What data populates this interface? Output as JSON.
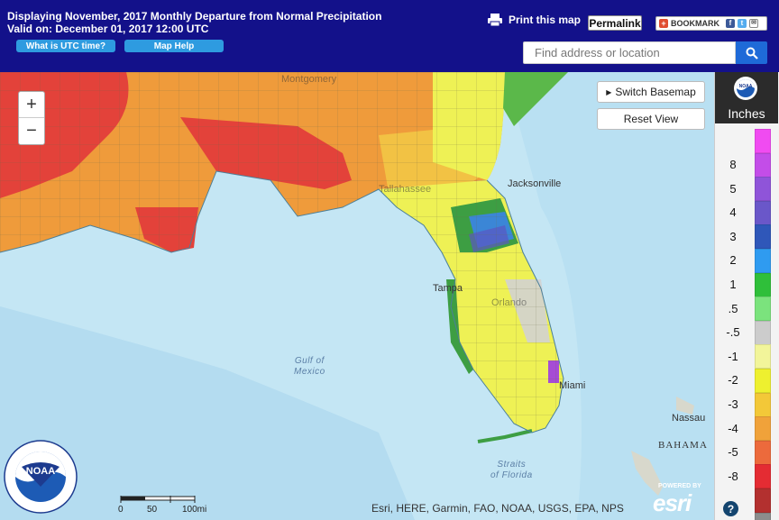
{
  "header": {
    "title": "Displaying November, 2017 Monthly Departure from Normal Precipitation",
    "valid_on": "Valid on: December 01, 2017 12:00 UTC",
    "utc_button": "What is UTC time?",
    "help_button": "Map Help",
    "print_label": "Print this map",
    "permalink_label": "Permalink",
    "bookmark_label": "BOOKMARK",
    "search_placeholder": "Find address or location"
  },
  "map": {
    "basemap_button": "Switch Basemap",
    "reset_button": "Reset View",
    "zoom_in": "+",
    "zoom_out": "−",
    "city_labels": [
      "Jacksonville",
      "Tampa",
      "Miami",
      "Nassau",
      "BAHAMA",
      "Montgomery",
      "Tallahassee",
      "Orlando"
    ],
    "water_labels": {
      "gulf": [
        "Gulf of",
        "Mexico"
      ],
      "straits": [
        "Straits",
        "of Florida"
      ]
    },
    "scalebar": {
      "labels": [
        "0",
        "50",
        "100mi"
      ]
    },
    "attribution": "Esri, HERE, Garmin, FAO, NOAA, USGS, EPA, NPS",
    "esri_powered": "POWERED BY",
    "esri_logo": "esri",
    "noaa_text": "NOAA"
  },
  "legend": {
    "units": "Inches",
    "help": "?",
    "noaa_text": "NOAA",
    "items": [
      {
        "label": "",
        "color": "#f04bf1"
      },
      {
        "label": "8",
        "color": "#c34de8"
      },
      {
        "label": "5",
        "color": "#8f54d9"
      },
      {
        "label": "4",
        "color": "#6a57c9"
      },
      {
        "label": "3",
        "color": "#2f57b9"
      },
      {
        "label": "2",
        "color": "#2f9bf0"
      },
      {
        "label": "1",
        "color": "#2fbf3a"
      },
      {
        "label": ".5",
        "color": "#7be37d"
      },
      {
        "label": "-.5",
        "color": "#cccccc"
      },
      {
        "label": "-1",
        "color": "#f2f59a"
      },
      {
        "label": "-2",
        "color": "#eef02f"
      },
      {
        "label": "-3",
        "color": "#f3c838"
      },
      {
        "label": "-4",
        "color": "#f0a23a"
      },
      {
        "label": "-5",
        "color": "#ec6a3c"
      },
      {
        "label": "-8",
        "color": "#e42c33"
      },
      {
        "label": "",
        "color": "#b3302f"
      },
      {
        "label": "",
        "color": "#8c8c8c"
      }
    ]
  }
}
